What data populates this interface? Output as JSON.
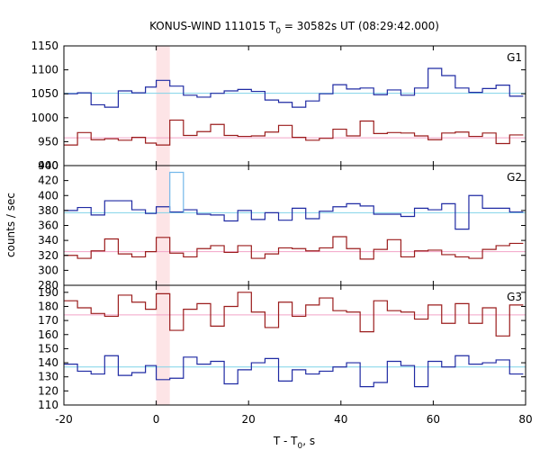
{
  "chart_data": {
    "type": "line",
    "title_main": "KONUS-WIND 111015 T",
    "title_sub": "0",
    "title_rest": " = 30582s UT (08:29:42.000)",
    "xlabel_main": "T - T",
    "xlabel_sub": "0",
    "xlabel_rest": ", s",
    "ylabel": "counts / sec",
    "xlim": [
      -20,
      80
    ],
    "x_ticks": [
      -20,
      0,
      20,
      40,
      60,
      80
    ],
    "highlight": {
      "x_range": [
        0,
        2.944
      ],
      "color": "#fde4e6"
    },
    "bin_edges": [
      -20,
      -17.056,
      -14.112,
      -11.168,
      -8.224,
      -5.28,
      -2.336,
      0,
      2.944,
      5.888,
      8.832,
      11.776,
      14.72,
      17.664,
      20.608,
      23.552,
      26.496,
      29.44,
      32.384,
      35.328,
      38.272,
      41.216,
      44.16,
      47.104,
      50.048,
      52.992,
      55.936,
      58.88,
      61.824,
      64.768,
      67.712,
      70.656,
      73.6,
      76.544,
      79.488
    ],
    "panels": [
      {
        "name": "G1",
        "ylim": [
          900,
          1150
        ],
        "y_ticks": [
          900,
          950,
          1000,
          1050,
          1100,
          1150
        ],
        "series": [
          {
            "color": "#1f2aa3",
            "mean": 1051,
            "mean_color": "#7fd3e8",
            "values": [
              1050,
              1052,
              1027,
              1022,
              1056,
              1052,
              1064,
              1078,
              1066,
              1047,
              1043,
              1051,
              1056,
              1059,
              1055,
              1037,
              1032,
              1022,
              1035,
              1050,
              1069,
              1060,
              1062,
              1048,
              1058,
              1047,
              1062,
              1103,
              1088,
              1062,
              1053,
              1061,
              1068,
              1045
            ]
          },
          {
            "color": "#9b1c1c",
            "mean": 958,
            "mean_color": "#f2a3c7",
            "values": [
              943,
              969,
              954,
              956,
              953,
              959,
              947,
              943,
              995,
              963,
              971,
              986,
              963,
              961,
              962,
              970,
              984,
              959,
              953,
              957,
              976,
              962,
              993,
              967,
              969,
              968,
              962,
              954,
              968,
              970,
              961,
              968,
              946,
              964
            ]
          }
        ]
      },
      {
        "name": "G2",
        "ylim": [
          280,
          440
        ],
        "y_ticks": [
          280,
          300,
          320,
          340,
          360,
          380,
          400,
          420,
          440
        ],
        "series": [
          {
            "color": "#1f2aa3",
            "mean": 377,
            "mean_color": "#7fd3e8",
            "values": [
              380,
              384,
              374,
              393,
              393,
              381,
              376,
              385,
              378,
              381,
              375,
              374,
              366,
              380,
              368,
              377,
              367,
              383,
              369,
              379,
              385,
              389,
              386,
              375,
              375,
              372,
              383,
              381,
              389,
              355,
              400,
              383,
              383,
              378
            ]
          },
          {
            "color": "#9b1c1c",
            "mean": 325,
            "mean_color": "#f2a3c7",
            "values": [
              320,
              316,
              326,
              342,
              322,
              318,
              325,
              344,
              323,
              318,
              329,
              333,
              324,
              333,
              316,
              322,
              330,
              329,
              326,
              330,
              345,
              329,
              315,
              328,
              341,
              318,
              326,
              327,
              321,
              318,
              316,
              328,
              333,
              336
            ]
          },
          {
            "color": "#74b8ea",
            "mean": null,
            "mean_color": null,
            "values": [
              null,
              null,
              null,
              null,
              null,
              null,
              null,
              null,
              431,
              null,
              null,
              null,
              null,
              null,
              null,
              null,
              null,
              null,
              null,
              null,
              null,
              null,
              null,
              null,
              null,
              null,
              null,
              null,
              null,
              null,
              null,
              null,
              null,
              null
            ]
          }
        ]
      },
      {
        "name": "G3",
        "ylim": [
          110,
          195
        ],
        "y_ticks": [
          110,
          120,
          130,
          140,
          150,
          160,
          170,
          180,
          190
        ],
        "series": [
          {
            "color": "#9b1c1c",
            "mean": 174,
            "mean_color": "#f2a3c7",
            "values": [
              184,
              179,
              175,
              173,
              188,
              183,
              178,
              189,
              163,
              178,
              182,
              166,
              180,
              190,
              176,
              165,
              183,
              173,
              181,
              186,
              177,
              176,
              162,
              184,
              177,
              176,
              171,
              181,
              168,
              182,
              168,
              179,
              159,
              181
            ]
          },
          {
            "color": "#1f2aa3",
            "mean": 137,
            "mean_color": "#7fd3e8",
            "values": [
              139,
              134,
              132,
              145,
              131,
              133,
              138,
              128,
              129,
              144,
              139,
              141,
              125,
              135,
              140,
              143,
              127,
              135,
              132,
              134,
              137,
              140,
              123,
              126,
              141,
              138,
              123,
              141,
              137,
              145,
              139,
              140,
              142,
              132
            ]
          }
        ]
      }
    ]
  }
}
